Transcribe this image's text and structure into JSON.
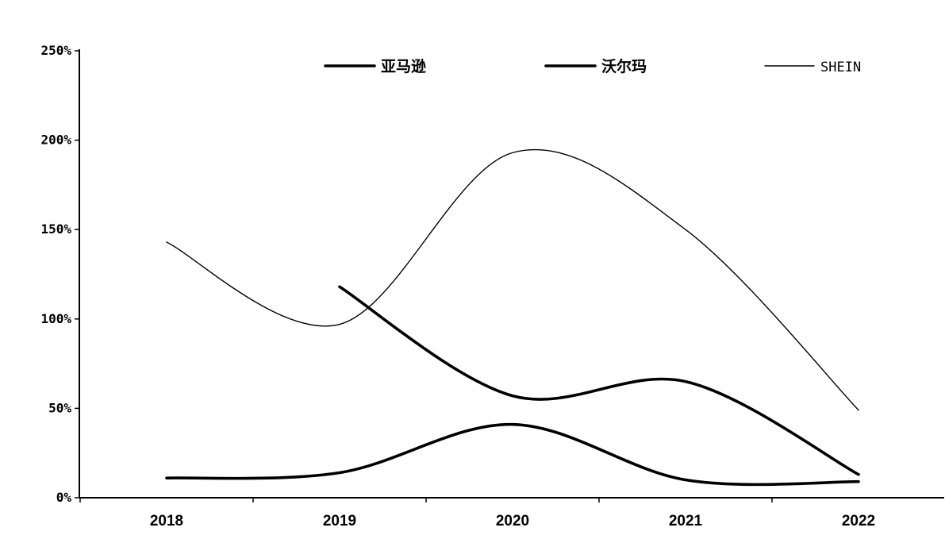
{
  "chart_data": {
    "type": "line",
    "categories": [
      "2018",
      "2019",
      "2020",
      "2021",
      "2022"
    ],
    "y_ticks": [
      "0%",
      "50%",
      "100%",
      "150%",
      "200%",
      "250%"
    ],
    "ylim": [
      0,
      250
    ],
    "y_unit": "%",
    "grid": false,
    "legend_position": "top",
    "series": [
      {
        "name": "亚马逊",
        "style": "thick",
        "color": "#000000",
        "values": [
          11,
          14,
          41,
          10,
          9
        ]
      },
      {
        "name": "沃尔玛",
        "style": "thick",
        "color": "#000000",
        "values": [
          null,
          118,
          57,
          65,
          13
        ]
      },
      {
        "name": "SHEIN",
        "style": "thin",
        "color": "#000000",
        "values": [
          143,
          97,
          193,
          150,
          49
        ]
      }
    ]
  }
}
